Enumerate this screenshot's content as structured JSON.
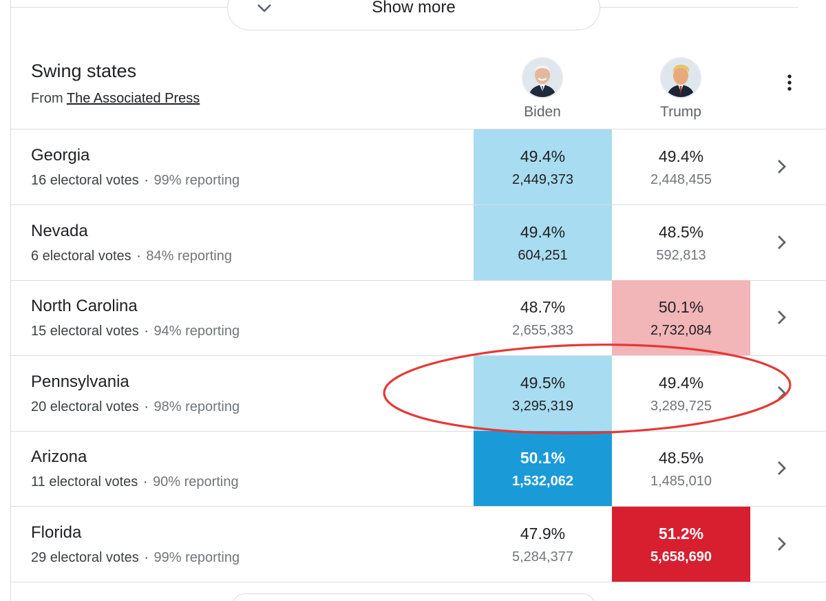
{
  "show_more": {
    "label": "Show more"
  },
  "header": {
    "title": "Swing states",
    "source_prefix": "From",
    "source_link": "The Associated Press"
  },
  "candidates": [
    {
      "name": "Biden"
    },
    {
      "name": "Trump"
    }
  ],
  "colors": {
    "biden_light": "#a8dcf0",
    "biden_strong": "#1a9bd7",
    "trump_light": "#f2b5b8",
    "trump_strong": "#d71f30",
    "annotation": "#e53935"
  },
  "rows": [
    {
      "state": "Georgia",
      "electoral": "16 electoral votes",
      "reporting": "99% reporting",
      "biden": {
        "pct": "49.4%",
        "votes": "2,449,373",
        "shade": "light"
      },
      "trump": {
        "pct": "49.4%",
        "votes": "2,448,455",
        "shade": "none"
      }
    },
    {
      "state": "Nevada",
      "electoral": "6 electoral votes",
      "reporting": "84% reporting",
      "biden": {
        "pct": "49.4%",
        "votes": "604,251",
        "shade": "light"
      },
      "trump": {
        "pct": "48.5%",
        "votes": "592,813",
        "shade": "none"
      }
    },
    {
      "state": "North Carolina",
      "electoral": "15 electoral votes",
      "reporting": "94% reporting",
      "biden": {
        "pct": "48.7%",
        "votes": "2,655,383",
        "shade": "none"
      },
      "trump": {
        "pct": "50.1%",
        "votes": "2,732,084",
        "shade": "light"
      }
    },
    {
      "state": "Pennsylvania",
      "electoral": "20 electoral votes",
      "reporting": "98% reporting",
      "biden": {
        "pct": "49.5%",
        "votes": "3,295,319",
        "shade": "light"
      },
      "trump": {
        "pct": "49.4%",
        "votes": "3,289,725",
        "shade": "none"
      }
    },
    {
      "state": "Arizona",
      "electoral": "11 electoral votes",
      "reporting": "90% reporting",
      "biden": {
        "pct": "50.1%",
        "votes": "1,532,062",
        "shade": "strong"
      },
      "trump": {
        "pct": "48.5%",
        "votes": "1,485,010",
        "shade": "none"
      }
    },
    {
      "state": "Florida",
      "electoral": "29 electoral votes",
      "reporting": "99% reporting",
      "biden": {
        "pct": "47.9%",
        "votes": "5,284,377",
        "shade": "none"
      },
      "trump": {
        "pct": "51.2%",
        "votes": "5,658,690",
        "shade": "strong"
      }
    }
  ]
}
